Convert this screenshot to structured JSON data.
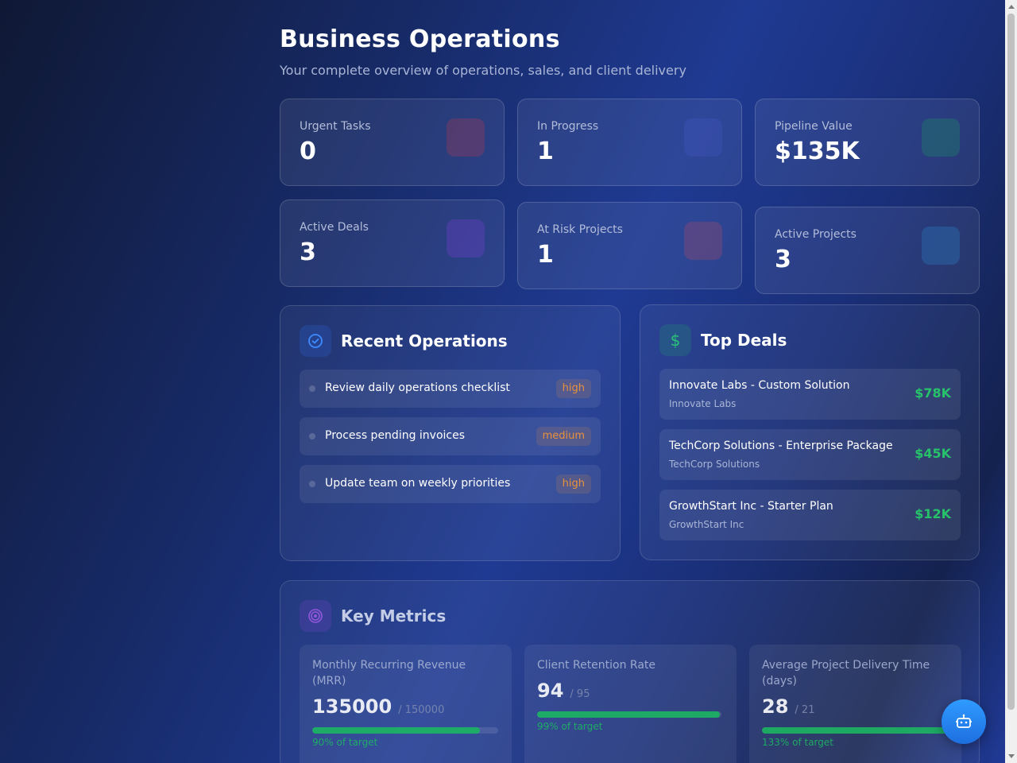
{
  "header": {
    "title": "Business Operations",
    "subtitle": "Your complete overview of operations, sales, and client delivery"
  },
  "stats": [
    {
      "label": "Urgent Tasks",
      "value": "0",
      "icon_color": "#c0394f"
    },
    {
      "label": "In Progress",
      "value": "1",
      "icon_color": "#3a4fb8"
    },
    {
      "label": "Pipeline Value",
      "value": "$135K",
      "icon_color": "#1f7a6a"
    },
    {
      "label": "Active Deals",
      "value": "3",
      "icon_color": "#6a3fc4"
    },
    {
      "label": "At Risk Projects",
      "value": "1",
      "icon_color": "#b34a68"
    },
    {
      "label": "Active Projects",
      "value": "3",
      "icon_color": "#2a6fb0"
    }
  ],
  "recent_operations": {
    "title": "Recent Operations",
    "icon": "check-circle-icon",
    "items": [
      {
        "text": "Review daily operations checklist",
        "priority": "high"
      },
      {
        "text": "Process pending invoices",
        "priority": "medium"
      },
      {
        "text": "Update team on weekly priorities",
        "priority": "high"
      }
    ]
  },
  "top_deals": {
    "title": "Top Deals",
    "icon": "dollar-icon",
    "items": [
      {
        "name": "Innovate Labs - Custom Solution",
        "company": "Innovate Labs",
        "amount": "$78K"
      },
      {
        "name": "TechCorp Solutions - Enterprise Package",
        "company": "TechCorp Solutions",
        "amount": "$45K"
      },
      {
        "name": "GrowthStart Inc - Starter Plan",
        "company": "GrowthStart Inc",
        "amount": "$12K"
      }
    ]
  },
  "key_metrics": {
    "title": "Key Metrics",
    "icon": "target-icon",
    "items": [
      {
        "label": "Monthly Recurring Revenue (MRR)",
        "value": "135000",
        "target": "/ 150000",
        "percent_text": "90% of target",
        "progress": 0.9
      },
      {
        "label": "Client Retention Rate",
        "value": "94",
        "target": "/ 95",
        "percent_text": "99% of target",
        "progress": 0.99
      },
      {
        "label": "Average Project Delivery Time (days)",
        "value": "28",
        "target": "/ 21",
        "percent_text": "133% of target",
        "progress": 1.0
      }
    ]
  },
  "colors": {
    "accent_green": "#1fb864",
    "badge_orange": "#e8913c",
    "fab_blue": "#2f9bff"
  },
  "assistant_button": {
    "icon": "robot-icon"
  }
}
